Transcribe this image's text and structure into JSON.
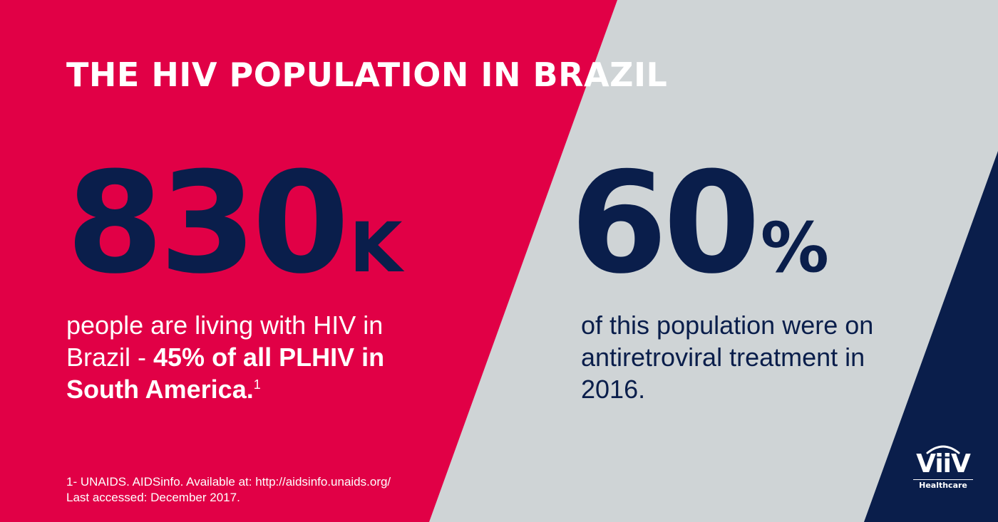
{
  "colors": {
    "crimson": "#e10046",
    "grey": "#cfd4d6",
    "navy": "#0a1e4b",
    "white": "#ffffff"
  },
  "title": "THE HIV POPULATION IN BRAZIL",
  "stat_left": {
    "number": "830",
    "unit": "K",
    "description_regular": "people are living with HIV in Brazil - ",
    "description_bold": "45% of all PLHIV in South America.",
    "footnote_marker": "1"
  },
  "stat_right": {
    "number": "60",
    "unit": "%",
    "description": "of this population were on antiretroviral treatment in 2016."
  },
  "footnote": {
    "line1": "1- UNAIDS. AIDSinfo. Available at: http://aidsinfo.unaids.org/",
    "line2": "Last accessed: December 2017."
  },
  "logo": {
    "word": "ViiV",
    "sub": "Healthcare"
  }
}
